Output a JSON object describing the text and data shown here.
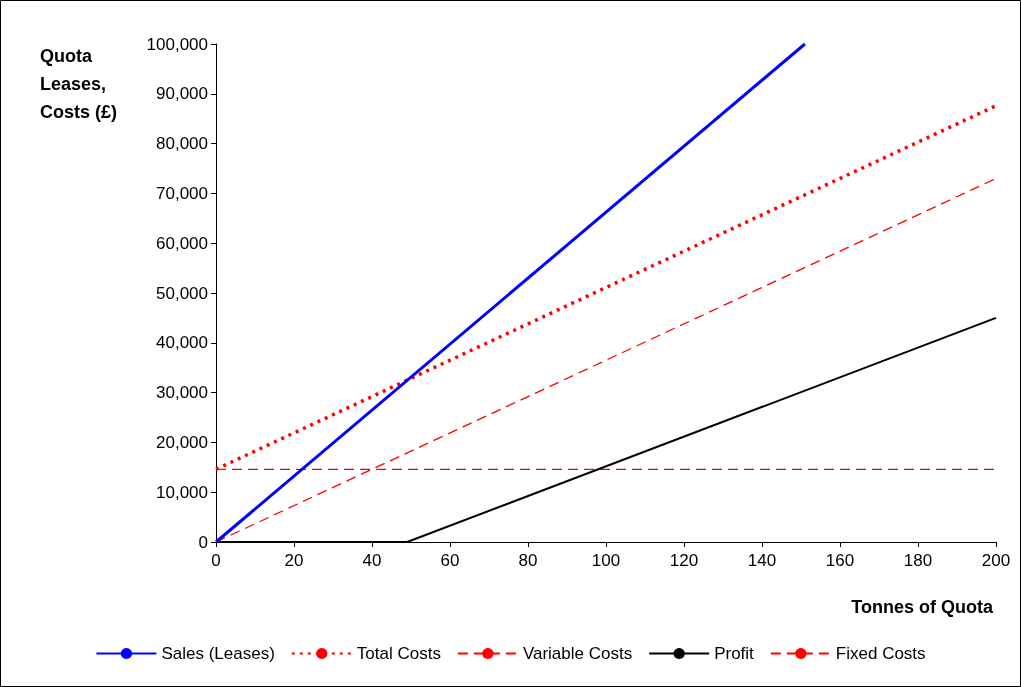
{
  "chart_data": {
    "type": "line",
    "xlabel": "Tonnes of Quota",
    "ylabel": "Quota Leases, Costs (£)",
    "xlim": [
      0,
      200
    ],
    "xticks": [
      0,
      20,
      40,
      60,
      80,
      100,
      120,
      140,
      160,
      180,
      200
    ],
    "ylim": [
      0,
      100000
    ],
    "yticks": [
      0,
      {
        "value": 10000,
        "label": "10,000"
      },
      {
        "value": 20000,
        "label": "20,000"
      },
      {
        "value": 30000,
        "label": "30,000"
      },
      {
        "value": 40000,
        "label": "40,000"
      },
      {
        "value": 50000,
        "label": "50,000"
      },
      {
        "value": 60000,
        "label": "60,000"
      },
      {
        "value": 70000,
        "label": "70,000"
      },
      {
        "value": 80000,
        "label": "80,000"
      },
      {
        "value": 90000,
        "label": "90,000"
      },
      {
        "value": 100000,
        "label": "100,000"
      }
    ],
    "grid": false,
    "legend": "bottom",
    "marker": "none",
    "series": [
      {
        "name": "Sales (Leases)",
        "color": "#0000ff",
        "line_style": "solid",
        "x": [
          0,
          151
        ],
        "values": [
          0,
          100000
        ]
      },
      {
        "name": "Total Costs",
        "color": "#ff0000",
        "line_style": "dotted",
        "x": [
          0,
          200
        ],
        "values": [
          14600,
          87600
        ]
      },
      {
        "name": "Variable Costs",
        "color": "#ff0000",
        "line_style": "dashed",
        "x": [
          0,
          200
        ],
        "values": [
          0,
          73000
        ]
      },
      {
        "name": "Profit",
        "color": "#000000",
        "line_style": "solid",
        "x": [
          0,
          49,
          200
        ],
        "values": [
          0,
          0,
          45000
        ]
      },
      {
        "name": "Fixed Costs",
        "color": "#ff0000",
        "line_style": "dashed",
        "x": [
          0,
          200
        ],
        "values": [
          14600,
          14600
        ]
      }
    ]
  }
}
